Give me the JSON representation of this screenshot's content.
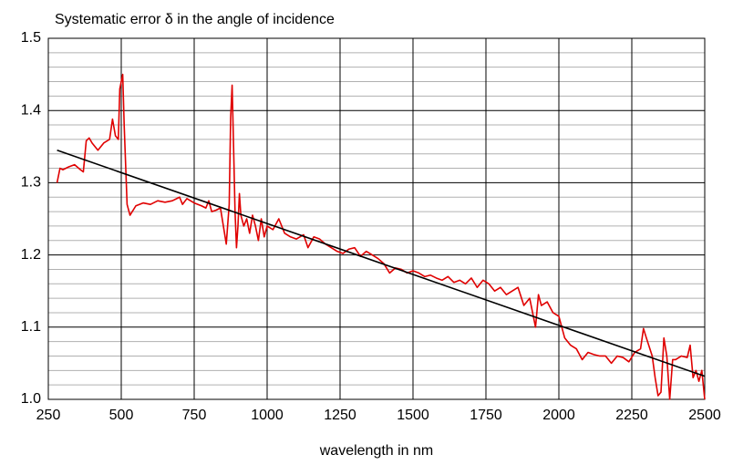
{
  "chart_data": {
    "type": "line",
    "title": "Systematic error δ in the angle of incidence",
    "x_label": "wavelength  in nm",
    "xlim": [
      250,
      2500
    ],
    "xticks": [
      250,
      500,
      750,
      1000,
      1250,
      1500,
      1750,
      2000,
      2250,
      2500
    ],
    "ylim": [
      1.0,
      1.5
    ],
    "yticks": [
      {
        "value": 1.0,
        "label": "1.0"
      },
      1.1,
      1.2,
      1.3,
      1.4,
      1.5
    ],
    "minor_yticks": [
      1.02,
      1.04,
      1.06,
      1.08,
      1.12,
      1.14,
      1.16,
      1.18,
      1.22,
      1.24,
      1.26,
      1.28,
      1.32,
      1.34,
      1.36,
      1.38,
      1.42,
      1.44,
      1.46,
      1.48
    ],
    "grid": true,
    "series": [
      {
        "color": "#e00000",
        "x": [
          280,
          290,
          300,
          320,
          340,
          360,
          370,
          380,
          390,
          400,
          420,
          440,
          460,
          470,
          480,
          490,
          495,
          505,
          510,
          520,
          530,
          550,
          575,
          600,
          625,
          650,
          675,
          700,
          710,
          725,
          750,
          775,
          790,
          800,
          810,
          825,
          840,
          850,
          860,
          870,
          875,
          880,
          885,
          890,
          895,
          900,
          905,
          910,
          920,
          930,
          940,
          950,
          960,
          970,
          980,
          990,
          1000,
          1020,
          1040,
          1060,
          1080,
          1100,
          1125,
          1140,
          1160,
          1180,
          1200,
          1220,
          1240,
          1260,
          1280,
          1300,
          1320,
          1340,
          1360,
          1380,
          1400,
          1420,
          1440,
          1460,
          1480,
          1500,
          1520,
          1540,
          1560,
          1580,
          1600,
          1620,
          1640,
          1660,
          1680,
          1700,
          1720,
          1740,
          1760,
          1780,
          1800,
          1820,
          1840,
          1860,
          1880,
          1900,
          1910,
          1920,
          1930,
          1940,
          1960,
          1980,
          2000,
          2010,
          2020,
          2040,
          2060,
          2080,
          2100,
          2120,
          2140,
          2160,
          2180,
          2200,
          2220,
          2240,
          2260,
          2280,
          2290,
          2300,
          2320,
          2330,
          2340,
          2350,
          2360,
          2370,
          2380,
          2390,
          2400,
          2420,
          2440,
          2450,
          2460,
          2470,
          2480,
          2490,
          2500
        ],
        "values": [
          1.3,
          1.32,
          1.318,
          1.322,
          1.325,
          1.318,
          1.315,
          1.358,
          1.362,
          1.355,
          1.345,
          1.355,
          1.36,
          1.388,
          1.365,
          1.36,
          1.43,
          1.45,
          1.38,
          1.27,
          1.255,
          1.268,
          1.272,
          1.27,
          1.275,
          1.273,
          1.275,
          1.28,
          1.27,
          1.278,
          1.272,
          1.268,
          1.265,
          1.275,
          1.26,
          1.262,
          1.265,
          1.24,
          1.215,
          1.27,
          1.39,
          1.435,
          1.35,
          1.26,
          1.21,
          1.24,
          1.285,
          1.255,
          1.24,
          1.25,
          1.23,
          1.255,
          1.24,
          1.22,
          1.25,
          1.225,
          1.24,
          1.235,
          1.25,
          1.23,
          1.225,
          1.222,
          1.228,
          1.21,
          1.225,
          1.222,
          1.215,
          1.21,
          1.205,
          1.202,
          1.208,
          1.21,
          1.198,
          1.205,
          1.2,
          1.195,
          1.188,
          1.175,
          1.182,
          1.18,
          1.175,
          1.178,
          1.175,
          1.17,
          1.172,
          1.168,
          1.165,
          1.17,
          1.162,
          1.165,
          1.16,
          1.168,
          1.155,
          1.165,
          1.16,
          1.15,
          1.155,
          1.145,
          1.15,
          1.155,
          1.13,
          1.14,
          1.12,
          1.1,
          1.145,
          1.13,
          1.135,
          1.12,
          1.115,
          1.1,
          1.085,
          1.075,
          1.07,
          1.055,
          1.065,
          1.062,
          1.06,
          1.06,
          1.05,
          1.06,
          1.058,
          1.052,
          1.065,
          1.07,
          1.098,
          1.085,
          1.06,
          1.03,
          1.005,
          1.01,
          1.085,
          1.06,
          1.0,
          1.055,
          1.055,
          1.06,
          1.058,
          1.075,
          1.03,
          1.04,
          1.025,
          1.04,
          1.0
        ]
      },
      {
        "color": "#000000",
        "x": [
          280,
          2500
        ],
        "values": [
          1.345,
          1.032
        ]
      }
    ]
  }
}
